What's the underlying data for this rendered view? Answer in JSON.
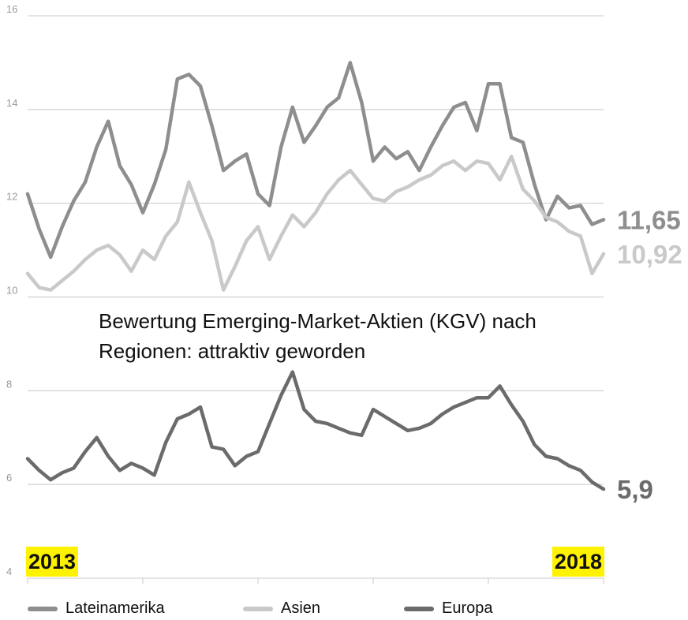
{
  "chart_data": {
    "type": "line",
    "title": "Bewertung Emerging-Market-Aktien (KGV) nach Regionen: attraktiv geworden",
    "x": [
      2013.0,
      2013.1,
      2013.2,
      2013.3,
      2013.4,
      2013.5,
      2013.6,
      2013.7,
      2013.8,
      2013.9,
      2014.0,
      2014.1,
      2014.2,
      2014.3,
      2014.4,
      2014.5,
      2014.6,
      2014.7,
      2014.8,
      2014.9,
      2015.0,
      2015.1,
      2015.2,
      2015.3,
      2015.4,
      2015.5,
      2015.6,
      2015.7,
      2015.8,
      2015.9,
      2016.0,
      2016.1,
      2016.2,
      2016.3,
      2016.4,
      2016.5,
      2016.6,
      2016.7,
      2016.8,
      2016.9,
      2017.0,
      2017.1,
      2017.2,
      2017.3,
      2017.4,
      2017.5,
      2017.6,
      2017.7,
      2017.8,
      2017.9,
      2018.0
    ],
    "xlim": [
      2013,
      2018
    ],
    "xticks": [
      2013,
      2014,
      2015,
      2016,
      2017,
      2018
    ],
    "ylim": [
      4,
      16
    ],
    "yticks": [
      4,
      6,
      8,
      10,
      12,
      14,
      16
    ],
    "grid": true,
    "series": [
      {
        "name": "Lateinamerika",
        "color": "#8e8e8e",
        "end_label": "11,65",
        "values": [
          12.2,
          11.45,
          10.85,
          11.5,
          12.05,
          12.45,
          13.2,
          13.75,
          12.8,
          12.4,
          11.8,
          12.4,
          13.15,
          14.65,
          14.75,
          14.5,
          13.65,
          12.7,
          12.9,
          13.05,
          12.2,
          11.95,
          13.2,
          14.05,
          13.3,
          13.65,
          14.05,
          14.25,
          15.0,
          14.15,
          12.9,
          13.2,
          12.95,
          13.1,
          12.7,
          13.2,
          13.65,
          14.05,
          14.15,
          13.55,
          14.55,
          14.55,
          13.4,
          13.3,
          12.4,
          11.65,
          12.15,
          11.9,
          11.95,
          11.55,
          11.65
        ]
      },
      {
        "name": "Asien",
        "color": "#c9c9c9",
        "end_label": "10,92",
        "values": [
          10.5,
          10.2,
          10.15,
          10.35,
          10.55,
          10.8,
          11.0,
          11.1,
          10.9,
          10.55,
          11.0,
          10.8,
          11.3,
          11.6,
          12.45,
          11.8,
          11.2,
          10.15,
          10.65,
          11.2,
          11.5,
          10.8,
          11.3,
          11.75,
          11.5,
          11.8,
          12.2,
          12.5,
          12.7,
          12.4,
          12.1,
          12.05,
          12.25,
          12.35,
          12.5,
          12.6,
          12.8,
          12.9,
          12.7,
          12.9,
          12.85,
          12.5,
          13.0,
          12.3,
          12.05,
          11.7,
          11.6,
          11.4,
          11.3,
          10.5,
          10.92
        ]
      },
      {
        "name": "Europa",
        "color": "#6b6b6e",
        "end_label": "5,9",
        "values": [
          6.55,
          6.3,
          6.1,
          6.25,
          6.35,
          6.7,
          7.0,
          6.6,
          6.3,
          6.45,
          6.35,
          6.2,
          6.9,
          7.4,
          7.5,
          7.65,
          6.8,
          6.75,
          6.4,
          6.6,
          6.7,
          7.3,
          7.9,
          8.4,
          7.6,
          7.35,
          7.3,
          7.2,
          7.1,
          7.05,
          7.6,
          7.45,
          7.3,
          7.15,
          7.2,
          7.3,
          7.5,
          7.65,
          7.75,
          7.85,
          7.85,
          8.1,
          7.7,
          7.35,
          6.85,
          6.6,
          6.55,
          6.4,
          6.3,
          6.05,
          5.9
        ]
      }
    ]
  }
}
